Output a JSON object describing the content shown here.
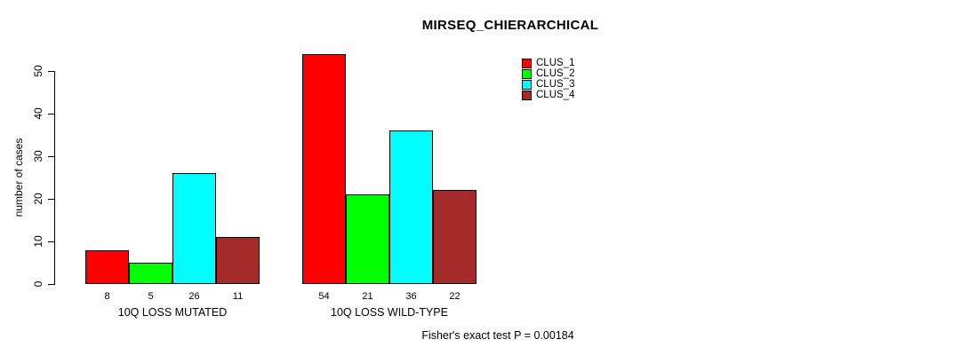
{
  "chart_data": {
    "type": "bar",
    "title": "MIRSEQ_CHIERARCHICAL",
    "ylabel": "number of cases",
    "xlabel": "",
    "ylim": [
      0,
      50
    ],
    "yticks": [
      0,
      10,
      20,
      30,
      40,
      50
    ],
    "grid": false,
    "legend_position": "top-right-outside",
    "bar_value_labels": true,
    "categories": [
      "10Q LOSS MUTATED",
      "10Q LOSS WILD-TYPE"
    ],
    "series": [
      {
        "name": "CLUS_1",
        "color": "#ff0000",
        "values": [
          8,
          54
        ]
      },
      {
        "name": "CLUS_2",
        "color": "#00ff00",
        "values": [
          5,
          21
        ]
      },
      {
        "name": "CLUS_3",
        "color": "#00ffff",
        "values": [
          26,
          36
        ]
      },
      {
        "name": "CLUS_4",
        "color": "#a52a2a",
        "values": [
          11,
          22
        ]
      }
    ],
    "annotation": "Fisher's exact test P = 0.00184",
    "colors": {
      "axis": "#000000",
      "text": "#000000",
      "background": "#ffffff",
      "bar_border": "#000000"
    }
  }
}
